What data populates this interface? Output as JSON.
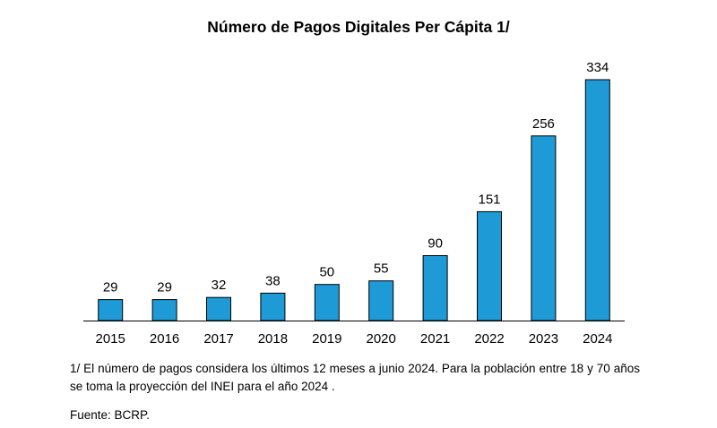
{
  "chart_data": {
    "type": "bar",
    "title": "Número de Pagos Digitales Per Cápita 1/",
    "categories": [
      "2015",
      "2016",
      "2017",
      "2018",
      "2019",
      "2020",
      "2021",
      "2022",
      "2023",
      "2024"
    ],
    "values": [
      29,
      29,
      32,
      38,
      50,
      55,
      90,
      151,
      256,
      334
    ],
    "xlabel": "",
    "ylabel": "",
    "ylim": [
      0,
      334
    ],
    "grid": false,
    "data_labels": true,
    "bar_color": "#1e9ad6",
    "note": "1/ El número de pagos considera los últimos 12 meses a junio 2024. Para la población entre 18 y 70 años se toma la proyección del INEI para el año 2024 .",
    "source": "Fuente: BCRP."
  }
}
